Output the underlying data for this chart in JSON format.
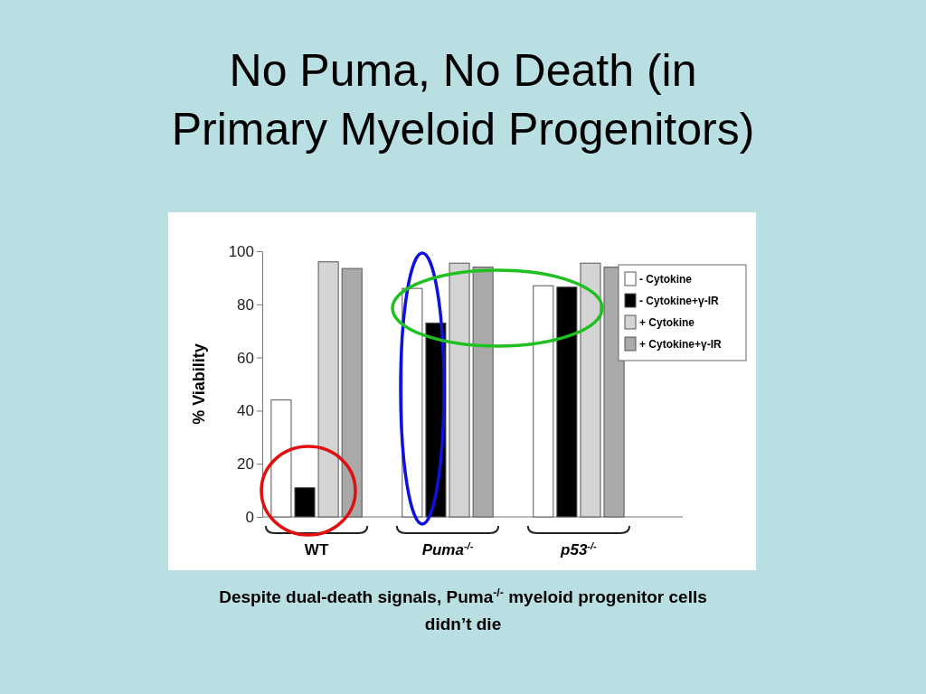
{
  "chart_data": {
    "type": "bar",
    "title": "No Puma, No Death (in Primary Myeloid Progenitors)",
    "ylabel": "% Viability",
    "categories": [
      "WT",
      "Puma$^{-/-}$",
      "p53$^{-/-}$"
    ],
    "series": [
      {
        "name": "- Cytokine",
        "color": "#ffffff",
        "values": [
          44,
          86,
          87
        ]
      },
      {
        "name": "- Cytokine+γ-IR",
        "color": "#000000",
        "values": [
          11,
          73,
          86.5
        ]
      },
      {
        "name": "+ Cytokine",
        "color": "#d4d4d4",
        "values": [
          96,
          95.5,
          95.5
        ]
      },
      {
        "name": "+ Cytokine+γ-IR",
        "color": "#a9a9a9",
        "values": [
          93.5,
          94,
          94
        ]
      }
    ],
    "ylim": [
      0,
      100
    ],
    "yticks": [
      0,
      20,
      40,
      60,
      80,
      100
    ],
    "legend": "top right",
    "annotations": [
      "Despite dual-death signals, Puma$^{-/-}$ myeloid progenitor cells didn’t die"
    ]
  }
}
